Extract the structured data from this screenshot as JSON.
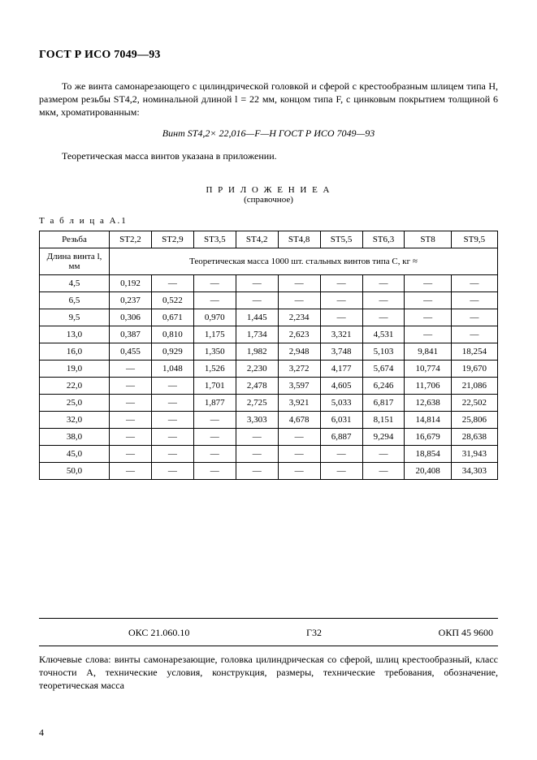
{
  "header": {
    "doc_title": "ГОСТ Р ИСО 7049—93"
  },
  "paragraphs": {
    "p1": "То же винта самонарезающего с цилиндрической головкой и сферой с крестообразным шлицем типа H, размером резьбы ST4,2, номинальной длиной l = 22 мм, концом типа F, с цинковым покрытием толщиной 6 мкм, хроматированным:",
    "designation": "Винт ST4,2× 22,016—F—H ГОСТ Р ИСО 7049—93",
    "p2": "Теоретическая масса винтов указана в приложении."
  },
  "appendix": {
    "title": "П Р И Л О Ж Е Н И Е  А",
    "subtitle": "(справочное)",
    "table_label": "Т а б л и ц а   А.1"
  },
  "table": {
    "header_row_label": "Резьба",
    "columns": [
      "ST2,2",
      "ST2,9",
      "ST3,5",
      "ST4,2",
      "ST4,8",
      "ST5,5",
      "ST6,3",
      "ST8",
      "ST9,5"
    ],
    "second_row_label": "Длина винта l, мм",
    "second_row_span_text": "Теоретическая масса 1000 шт. стальных винтов типа С, кг ≈",
    "rows": [
      {
        "label": "4,5",
        "cells": [
          "0,192",
          "—",
          "—",
          "—",
          "—",
          "—",
          "—",
          "—",
          "—"
        ]
      },
      {
        "label": "6,5",
        "cells": [
          "0,237",
          "0,522",
          "—",
          "—",
          "—",
          "—",
          "—",
          "—",
          "—"
        ]
      },
      {
        "label": "9,5",
        "cells": [
          "0,306",
          "0,671",
          "0,970",
          "1,445",
          "2,234",
          "—",
          "—",
          "—",
          "—"
        ]
      },
      {
        "label": "13,0",
        "cells": [
          "0,387",
          "0,810",
          "1,175",
          "1,734",
          "2,623",
          "3,321",
          "4,531",
          "—",
          "—"
        ]
      },
      {
        "label": "16,0",
        "cells": [
          "0,455",
          "0,929",
          "1,350",
          "1,982",
          "2,948",
          "3,748",
          "5,103",
          "9,841",
          "18,254"
        ]
      },
      {
        "label": "19,0",
        "cells": [
          "—",
          "1,048",
          "1,526",
          "2,230",
          "3,272",
          "4,177",
          "5,674",
          "10,774",
          "19,670"
        ]
      },
      {
        "label": "22,0",
        "cells": [
          "—",
          "—",
          "1,701",
          "2,478",
          "3,597",
          "4,605",
          "6,246",
          "11,706",
          "21,086"
        ]
      },
      {
        "label": "25,0",
        "cells": [
          "—",
          "—",
          "1,877",
          "2,725",
          "3,921",
          "5,033",
          "6,817",
          "12,638",
          "22,502"
        ]
      },
      {
        "label": "32,0",
        "cells": [
          "—",
          "—",
          "—",
          "3,303",
          "4,678",
          "6,031",
          "8,151",
          "14,814",
          "25,806"
        ]
      },
      {
        "label": "38,0",
        "cells": [
          "—",
          "—",
          "—",
          "—",
          "—",
          "6,887",
          "9,294",
          "16,679",
          "28,638"
        ]
      },
      {
        "label": "45,0",
        "cells": [
          "—",
          "—",
          "—",
          "—",
          "—",
          "—",
          "—",
          "18,854",
          "31,943"
        ]
      },
      {
        "label": "50,0",
        "cells": [
          "—",
          "—",
          "—",
          "—",
          "—",
          "—",
          "—",
          "20,408",
          "34,303"
        ]
      }
    ]
  },
  "footer": {
    "oks": "ОКС 21.060.10",
    "g32": "Г32",
    "okp": "ОКП 45 9600",
    "keywords": "Ключевые слова: винты самонарезающие, головка цилиндрическая со сферой, шлиц крестообразный,  класс  точности  А,  технические  условия,  конструкция,  размеры,  технические требования, обозначение, теоретическая масса",
    "page_number": "4"
  }
}
